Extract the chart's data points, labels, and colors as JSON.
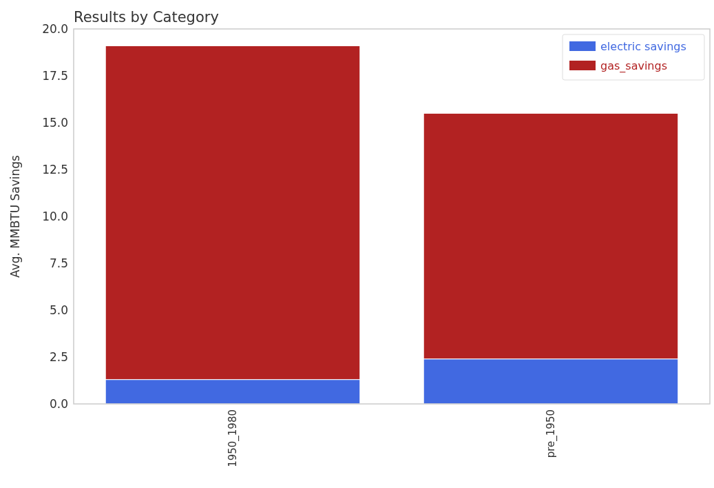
{
  "chart_data": {
    "type": "bar",
    "title": "Results by Category",
    "ylabel": "Avg. MMBTU Savings",
    "categories": [
      "1950_1980",
      "pre_1950"
    ],
    "series": [
      {
        "name": "electric savings",
        "color": "#4169e1",
        "values": [
          1.3,
          2.4
        ]
      },
      {
        "name": "gas_savings",
        "color": "#b22222",
        "values": [
          17.8,
          13.1
        ]
      }
    ],
    "stacked": true,
    "ylim": [
      0,
      20
    ],
    "yticks": [
      {
        "value": 0,
        "label": "0.0"
      },
      {
        "value": 2.5,
        "label": "2.5"
      },
      {
        "value": 5,
        "label": "5.0"
      },
      {
        "value": 7.5,
        "label": "7.5"
      },
      {
        "value": 10,
        "label": "10.0"
      },
      {
        "value": 12.5,
        "label": "12.5"
      },
      {
        "value": 15,
        "label": "15.0"
      },
      {
        "value": 17.5,
        "label": "17.5"
      },
      {
        "value": 20,
        "label": "20.0"
      }
    ],
    "grid": false,
    "legend": "top right"
  }
}
